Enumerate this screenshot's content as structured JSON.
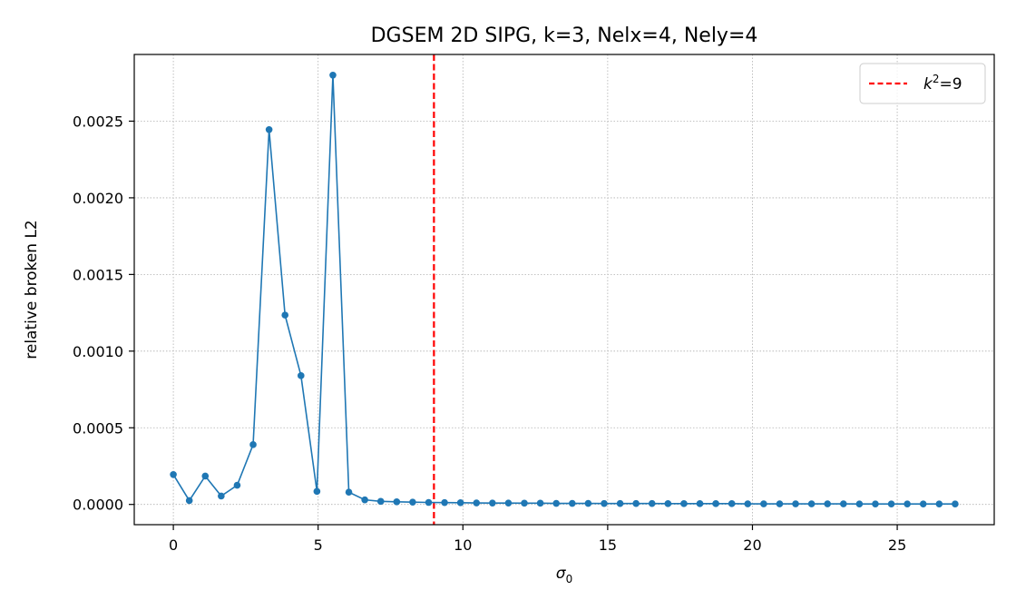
{
  "chart_data": {
    "type": "line",
    "title": "DGSEM 2D SIPG, k=3, Nelx=4, Nely=4",
    "xlabel_base": "σ",
    "xlabel_sub": "0",
    "ylabel": "relative broken L2",
    "xlim": [
      -1.35,
      28.35
    ],
    "ylim": [
      -0.000132,
      0.002935
    ],
    "xticks": [
      0,
      5,
      10,
      15,
      20,
      25
    ],
    "xtick_labels": [
      "0",
      "5",
      "10",
      "15",
      "20",
      "25"
    ],
    "yticks": [
      0,
      0.0005,
      0.001,
      0.0015,
      0.002,
      0.0025
    ],
    "ytick_labels": [
      "0.0000",
      "0.0005",
      "0.0010",
      "0.0015",
      "0.0020",
      "0.0025"
    ],
    "grid": true,
    "legend_position": "top-right",
    "colors": {
      "series": "#1f77b4",
      "reference": "#ff0000",
      "grid": "#b0b0b0"
    },
    "series": [
      {
        "x": [
          0,
          0.551,
          1.102,
          1.653,
          2.204,
          2.755,
          3.306,
          3.857,
          4.408,
          4.959,
          5.51,
          6.061,
          6.612,
          7.163,
          7.714,
          8.265,
          8.816,
          9.367,
          9.918,
          10.469,
          11.02,
          11.571,
          12.122,
          12.673,
          13.224,
          13.776,
          14.327,
          14.878,
          15.429,
          15.98,
          16.531,
          17.082,
          17.633,
          18.184,
          18.735,
          19.286,
          19.837,
          20.388,
          20.939,
          21.49,
          22.041,
          22.592,
          23.143,
          23.694,
          24.245,
          24.796,
          25.347,
          25.898,
          26.449,
          27.0
        ],
        "y": [
          0.000195,
          2.5e-05,
          0.000185,
          5.5e-05,
          0.000125,
          0.00039,
          0.002445,
          0.001235,
          0.00084,
          8.5e-05,
          0.0028,
          8e-05,
          3e-05,
          2e-05,
          1.7e-05,
          1.5e-05,
          1.3e-05,
          1.2e-05,
          1.1e-05,
          1e-05,
          9e-06,
          9e-06,
          8e-06,
          8e-06,
          7e-06,
          7e-06,
          7e-06,
          6e-06,
          6e-06,
          6e-06,
          6e-06,
          5e-06,
          5e-06,
          5e-06,
          5e-06,
          5e-06,
          4e-06,
          4e-06,
          4e-06,
          4e-06,
          4e-06,
          4e-06,
          4e-06,
          3e-06,
          3e-06,
          3e-06,
          3e-06,
          3e-06,
          3e-06,
          3e-06
        ]
      }
    ],
    "reference_line": {
      "x": 9,
      "label_base": "k",
      "label_sup": "2",
      "label_suffix": "=9",
      "style": "dashed"
    }
  }
}
